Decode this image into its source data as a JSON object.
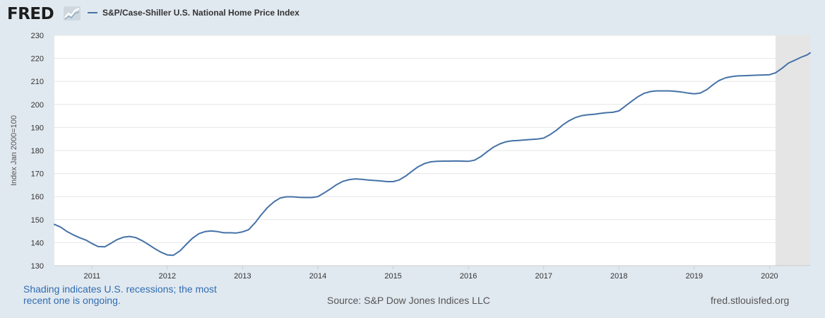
{
  "header": {
    "logo": "FRED",
    "legend_label": "S&P/Case-Shiller U.S. National Home Price Index"
  },
  "colors": {
    "series": "#4572a7",
    "recession_shade": "#e5e5e5",
    "plot_background": "#ffffff",
    "page_background": "#e1e9f0",
    "gridline": "#e6e6e6"
  },
  "chart_data": {
    "type": "line",
    "title": "S&P/Case-Shiller U.S. National Home Price Index",
    "ylabel": "Index Jan 2000=100",
    "xlabel": "",
    "xlim": [
      2010.5,
      2020.54
    ],
    "ylim": [
      130,
      230
    ],
    "yticks": [
      130,
      140,
      150,
      160,
      170,
      180,
      190,
      200,
      210,
      220,
      230
    ],
    "xticks": [
      2011,
      2012,
      2013,
      2014,
      2015,
      2016,
      2017,
      2018,
      2019,
      2020
    ],
    "grid": true,
    "recessions": [
      {
        "start": 2020.08,
        "end": 2020.54
      }
    ],
    "series": [
      {
        "name": "S&P/Case-Shiller U.S. National Home Price Index",
        "x": [
          2010.5,
          2010.58,
          2010.67,
          2010.75,
          2010.83,
          2010.92,
          2011.0,
          2011.08,
          2011.17,
          2011.25,
          2011.33,
          2011.42,
          2011.5,
          2011.58,
          2011.67,
          2011.75,
          2011.83,
          2011.92,
          2012.0,
          2012.08,
          2012.17,
          2012.25,
          2012.33,
          2012.42,
          2012.5,
          2012.58,
          2012.67,
          2012.75,
          2012.83,
          2012.92,
          2013.0,
          2013.08,
          2013.17,
          2013.25,
          2013.33,
          2013.42,
          2013.5,
          2013.58,
          2013.67,
          2013.75,
          2013.83,
          2013.92,
          2014.0,
          2014.08,
          2014.17,
          2014.25,
          2014.33,
          2014.42,
          2014.5,
          2014.58,
          2014.67,
          2014.75,
          2014.83,
          2014.92,
          2015.0,
          2015.08,
          2015.17,
          2015.25,
          2015.33,
          2015.42,
          2015.5,
          2015.58,
          2015.67,
          2015.75,
          2015.83,
          2015.92,
          2016.0,
          2016.08,
          2016.17,
          2016.25,
          2016.33,
          2016.42,
          2016.5,
          2016.58,
          2016.67,
          2016.75,
          2016.83,
          2016.92,
          2017.0,
          2017.08,
          2017.17,
          2017.25,
          2017.33,
          2017.42,
          2017.5,
          2017.58,
          2017.67,
          2017.75,
          2017.83,
          2017.92,
          2018.0,
          2018.08,
          2018.17,
          2018.25,
          2018.33,
          2018.42,
          2018.5,
          2018.58,
          2018.67,
          2018.75,
          2018.83,
          2018.92,
          2019.0,
          2019.08,
          2019.17,
          2019.25,
          2019.33,
          2019.42,
          2019.5,
          2019.58,
          2019.67,
          2019.75,
          2019.83,
          2019.92,
          2020.0,
          2020.08,
          2020.17,
          2020.25,
          2020.33,
          2020.42,
          2020.5,
          2020.54
        ],
        "values": [
          147.9,
          146.8,
          144.8,
          143.4,
          142.2,
          141.1,
          139.6,
          138.3,
          138.2,
          139.7,
          141.3,
          142.4,
          142.7,
          142.2,
          140.8,
          139.2,
          137.5,
          135.8,
          134.7,
          134.5,
          136.5,
          139.2,
          141.8,
          143.9,
          144.8,
          145.1,
          144.8,
          144.3,
          144.3,
          144.2,
          144.7,
          145.6,
          148.8,
          152.2,
          155.2,
          157.8,
          159.4,
          159.9,
          159.9,
          159.7,
          159.6,
          159.6,
          160.0,
          161.5,
          163.4,
          165.2,
          166.6,
          167.4,
          167.7,
          167.5,
          167.2,
          167.0,
          166.8,
          166.5,
          166.5,
          167.2,
          169.0,
          171.0,
          172.9,
          174.4,
          175.1,
          175.3,
          175.4,
          175.4,
          175.5,
          175.4,
          175.3,
          175.8,
          177.5,
          179.5,
          181.4,
          182.9,
          183.8,
          184.2,
          184.4,
          184.6,
          184.8,
          185.0,
          185.4,
          186.8,
          188.8,
          191.0,
          192.8,
          194.3,
          195.1,
          195.5,
          195.7,
          196.1,
          196.4,
          196.6,
          197.2,
          199.2,
          201.4,
          203.3,
          204.8,
          205.6,
          205.9,
          205.9,
          205.9,
          205.7,
          205.4,
          204.9,
          204.6,
          204.9,
          206.5,
          208.6,
          210.4,
          211.6,
          212.1,
          212.4,
          212.5,
          212.6,
          212.7,
          212.8,
          212.9,
          213.7,
          215.8,
          217.9,
          219.1,
          220.5,
          221.5,
          222.4
        ]
      }
    ]
  },
  "footer": {
    "note": "Shading indicates U.S. recessions; the most recent one is ongoing.",
    "source": "Source: S&P Dow Jones Indices LLC",
    "url": "fred.stlouisfed.org"
  }
}
